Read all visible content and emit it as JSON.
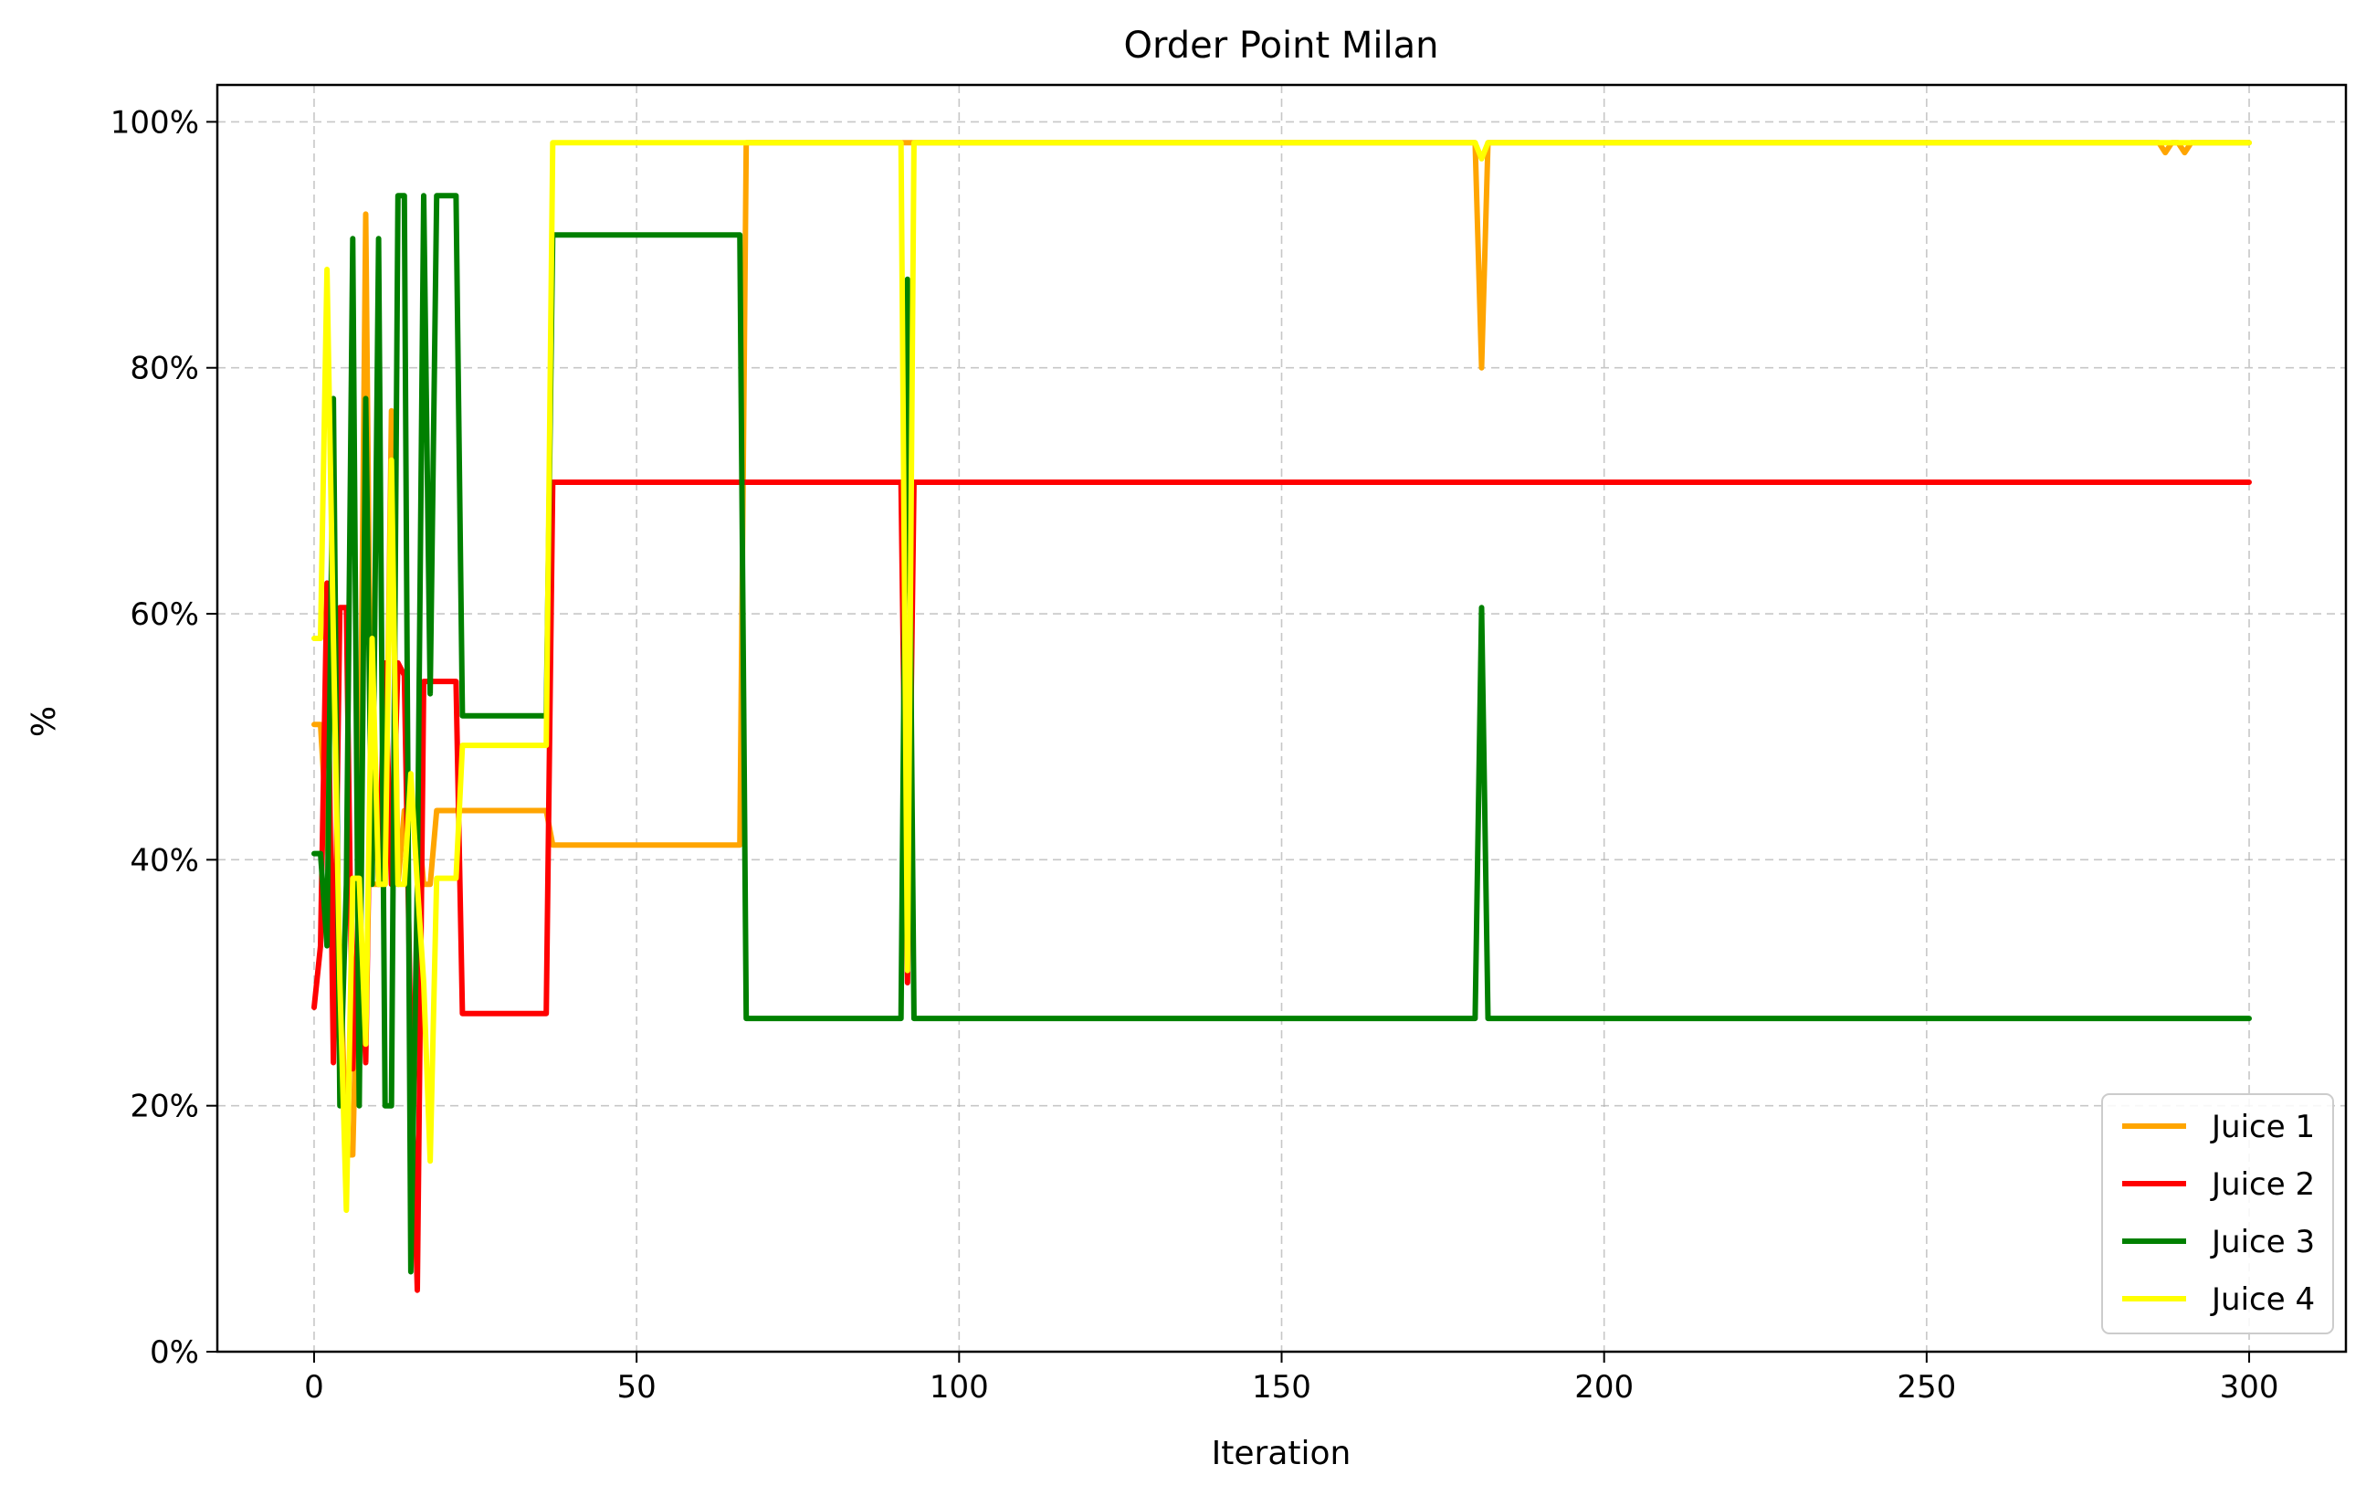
{
  "chart_data": {
    "type": "line",
    "title": "Order Point Milan",
    "xlabel": "Iteration",
    "ylabel": "%",
    "xlim": [
      -15,
      315
    ],
    "ylim": [
      0,
      1.03
    ],
    "xticks": [
      0,
      50,
      100,
      150,
      200,
      250,
      300
    ],
    "xtick_labels": [
      "0",
      "50",
      "100",
      "150",
      "200",
      "250",
      "300"
    ],
    "yticks": [
      0,
      0.2,
      0.4,
      0.6,
      0.8,
      1.0
    ],
    "ytick_labels": [
      "0%",
      "20%",
      "40%",
      "60%",
      "80%",
      "100%"
    ],
    "grid": true,
    "legend_position": "lower-right",
    "series": [
      {
        "name": "Juice 1",
        "color": "#ffa500",
        "points": [
          [
            0,
            0.51
          ],
          [
            1,
            0.51
          ],
          [
            2,
            0.42
          ],
          [
            3,
            0.33
          ],
          [
            4,
            0.33
          ],
          [
            5,
            0.16
          ],
          [
            6,
            0.16
          ],
          [
            7,
            0.38
          ],
          [
            8,
            0.925
          ],
          [
            9,
            0.38
          ],
          [
            10,
            0.38
          ],
          [
            11,
            0.38
          ],
          [
            12,
            0.765
          ],
          [
            13,
            0.38
          ],
          [
            14,
            0.44
          ],
          [
            15,
            0.44
          ],
          [
            16,
            0.44
          ],
          [
            17,
            0.38
          ],
          [
            18,
            0.38
          ],
          [
            19,
            0.44
          ],
          [
            20,
            0.44
          ],
          [
            21,
            0.44
          ],
          [
            22,
            0.44
          ],
          [
            23,
            0.44
          ],
          [
            36,
            0.44
          ],
          [
            37,
            0.412
          ],
          [
            66,
            0.412
          ],
          [
            67,
            0.983
          ],
          [
            180,
            0.983
          ],
          [
            181,
            0.8
          ],
          [
            182,
            0.983
          ],
          [
            286,
            0.983
          ],
          [
            287,
            0.975
          ],
          [
            288,
            0.983
          ],
          [
            289,
            0.983
          ],
          [
            290,
            0.975
          ],
          [
            291,
            0.983
          ],
          [
            300,
            0.983
          ]
        ]
      },
      {
        "name": "Juice 2",
        "color": "#ff0000",
        "points": [
          [
            0,
            0.28
          ],
          [
            1,
            0.33
          ],
          [
            2,
            0.625
          ],
          [
            3,
            0.235
          ],
          [
            4,
            0.605
          ],
          [
            5,
            0.605
          ],
          [
            6,
            0.23
          ],
          [
            7,
            0.38
          ],
          [
            8,
            0.235
          ],
          [
            9,
            0.56
          ],
          [
            10,
            0.38
          ],
          [
            11,
            0.56
          ],
          [
            12,
            0.38
          ],
          [
            13,
            0.56
          ],
          [
            14,
            0.55
          ],
          [
            15,
            0.25
          ],
          [
            16,
            0.05
          ],
          [
            17,
            0.545
          ],
          [
            18,
            0.545
          ],
          [
            22,
            0.545
          ],
          [
            23,
            0.275
          ],
          [
            36,
            0.275
          ],
          [
            37,
            0.707
          ],
          [
            91,
            0.707
          ],
          [
            92,
            0.3
          ],
          [
            93,
            0.707
          ],
          [
            300,
            0.707
          ]
        ]
      },
      {
        "name": "Juice 3",
        "color": "#008000",
        "points": [
          [
            0,
            0.405
          ],
          [
            1,
            0.405
          ],
          [
            2,
            0.33
          ],
          [
            3,
            0.775
          ],
          [
            4,
            0.2
          ],
          [
            5,
            0.38
          ],
          [
            6,
            0.905
          ],
          [
            7,
            0.2
          ],
          [
            8,
            0.775
          ],
          [
            9,
            0.38
          ],
          [
            10,
            0.905
          ],
          [
            11,
            0.2
          ],
          [
            12,
            0.2
          ],
          [
            13,
            0.94
          ],
          [
            14,
            0.94
          ],
          [
            15,
            0.065
          ],
          [
            16,
            0.38
          ],
          [
            17,
            0.94
          ],
          [
            18,
            0.535
          ],
          [
            19,
            0.94
          ],
          [
            20,
            0.94
          ],
          [
            21,
            0.94
          ],
          [
            22,
            0.94
          ],
          [
            23,
            0.517
          ],
          [
            36,
            0.517
          ],
          [
            37,
            0.908
          ],
          [
            66,
            0.908
          ],
          [
            67,
            0.271
          ],
          [
            91,
            0.271
          ],
          [
            92,
            0.872
          ],
          [
            93,
            0.271
          ],
          [
            180,
            0.271
          ],
          [
            181,
            0.605
          ],
          [
            182,
            0.271
          ],
          [
            300,
            0.271
          ]
        ]
      },
      {
        "name": "Juice 4",
        "color": "#ffff00",
        "points": [
          [
            0,
            0.58
          ],
          [
            1,
            0.58
          ],
          [
            2,
            0.88
          ],
          [
            3,
            0.58
          ],
          [
            4,
            0.3
          ],
          [
            5,
            0.115
          ],
          [
            6,
            0.385
          ],
          [
            7,
            0.385
          ],
          [
            8,
            0.25
          ],
          [
            9,
            0.58
          ],
          [
            10,
            0.38
          ],
          [
            11,
            0.38
          ],
          [
            12,
            0.725
          ],
          [
            13,
            0.38
          ],
          [
            14,
            0.38
          ],
          [
            15,
            0.47
          ],
          [
            16,
            0.38
          ],
          [
            17,
            0.3
          ],
          [
            18,
            0.155
          ],
          [
            19,
            0.385
          ],
          [
            22,
            0.385
          ],
          [
            23,
            0.493
          ],
          [
            36,
            0.493
          ],
          [
            37,
            0.983
          ],
          [
            91,
            0.983
          ],
          [
            92,
            0.31
          ],
          [
            93,
            0.983
          ],
          [
            180,
            0.983
          ],
          [
            181,
            0.97
          ],
          [
            182,
            0.983
          ],
          [
            300,
            0.983
          ]
        ]
      }
    ]
  }
}
